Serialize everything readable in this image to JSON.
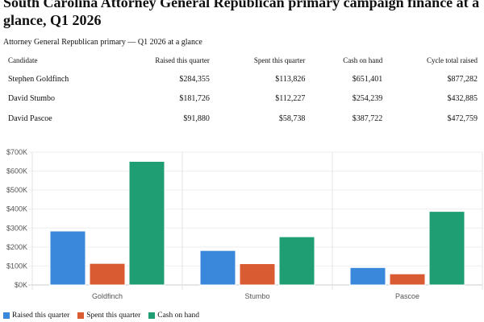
{
  "title_line1": "South Carolina Attorney General Republican primary campaign finance at a",
  "title_line2": "glance, Q1 2026",
  "table": {
    "caption": "Attorney General Republican primary — Q1 2026 at a glance",
    "headers": [
      "Candidate",
      "Raised this quarter",
      "Spent this quarter",
      "Cash on hand",
      "Cycle total raised"
    ],
    "rows": [
      [
        "Stephen Goldfinch",
        "$284,355",
        "$113,826",
        "$651,401",
        "$877,282"
      ],
      [
        "David Stumbo",
        "$181,726",
        "$112,227",
        "$254,239",
        "$432,885"
      ],
      [
        "David Pascoe",
        "$91,880",
        "$58,738",
        "$387,722",
        "$472,759"
      ]
    ]
  },
  "chart_data": {
    "type": "bar",
    "categories": [
      "Goldfinch",
      "Stumbo",
      "Pascoe"
    ],
    "series": [
      {
        "name": "Raised this quarter",
        "color": "#3a88dc",
        "values": [
          284355,
          181726,
          91880
        ]
      },
      {
        "name": "Spent this quarter",
        "color": "#d95b32",
        "values": [
          113826,
          112227,
          58738
        ]
      },
      {
        "name": "Cash on hand",
        "color": "#1f9e74",
        "values": [
          651401,
          254239,
          387722
        ]
      }
    ],
    "ylim": [
      0,
      700000
    ],
    "yticks": [
      "$0K",
      "$100K",
      "$200K",
      "$300K",
      "$400K",
      "$500K",
      "$600K",
      "$700K"
    ],
    "legend": "bottom-left",
    "grid": true
  }
}
